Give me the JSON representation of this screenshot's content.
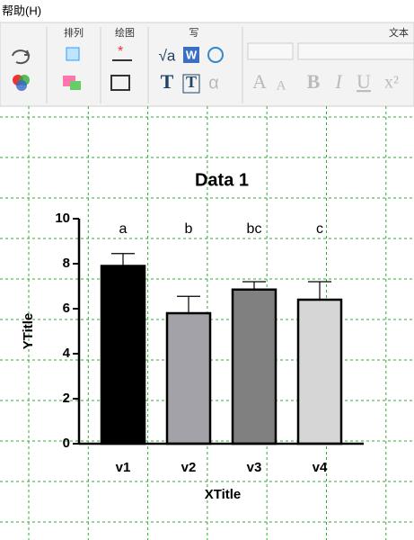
{
  "menu": {
    "help": "帮助(H)"
  },
  "toolbar": {
    "groups": [
      "排列",
      "绘图",
      "写",
      "文本"
    ],
    "icons": [
      "√a",
      "W",
      "T",
      "T",
      "α",
      "A",
      "A",
      "B",
      "I",
      "U",
      "x²"
    ]
  },
  "chart_data": {
    "type": "bar",
    "title": "Data 1",
    "xlabel": "XTitle",
    "ylabel": "YTitle",
    "categories": [
      "v1",
      "v2",
      "v3",
      "v4"
    ],
    "values": [
      7.9,
      5.8,
      6.85,
      6.4
    ],
    "errors": [
      0.55,
      0.75,
      0.35,
      0.8
    ],
    "annotations": [
      "a",
      "b",
      "bc",
      "c"
    ],
    "colors": [
      "#000000",
      "#a2a2a8",
      "#808080",
      "#d6d6d6"
    ],
    "ylim": [
      0,
      10
    ],
    "yticks": [
      0,
      2,
      4,
      6,
      8,
      10
    ]
  }
}
